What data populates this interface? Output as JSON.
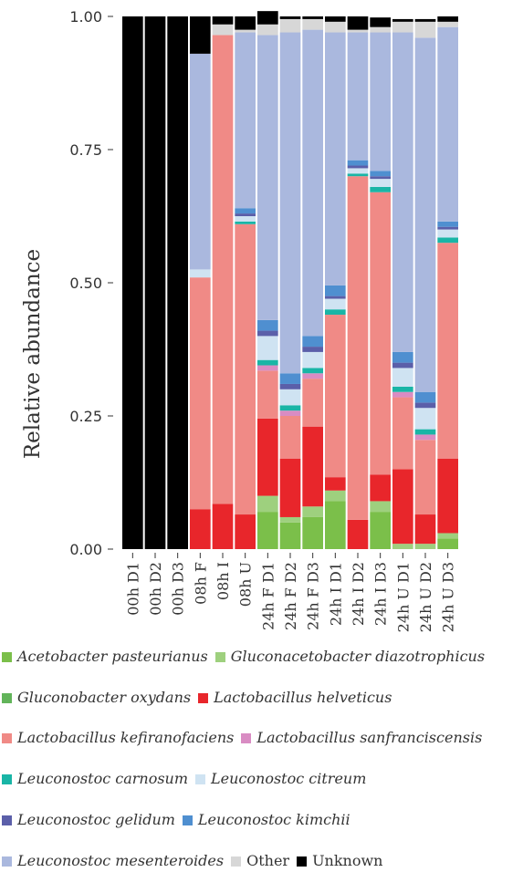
{
  "chart_data": {
    "type": "bar",
    "stacked": true,
    "orientation": "vertical",
    "ylabel": "Relative abundance",
    "xlabel": "",
    "ylim": [
      0,
      1
    ],
    "yticks": [
      "0.00",
      "0.25",
      "0.50",
      "0.75",
      "1.00"
    ],
    "grid": false,
    "legend_position": "bottom",
    "categories": [
      "00h D1",
      "00h D2",
      "00h D3",
      "08h F",
      "08h I",
      "08h U",
      "24h F D1",
      "24h F D2",
      "24h F D3",
      "24h I D1",
      "24h I D2",
      "24h I D3",
      "24h U D1",
      "24h U D2",
      "24h U D3"
    ],
    "series": [
      {
        "name": "Acetobacter pasteurianus",
        "italic": true,
        "color": "#7bbf4a",
        "values": [
          0,
          0,
          0,
          0,
          0,
          0,
          0.07,
          0.05,
          0.06,
          0.09,
          0,
          0.07,
          0,
          0,
          0.02
        ]
      },
      {
        "name": "Gluconacetobacter diazotrophicus",
        "italic": true,
        "color": "#9ed07e",
        "values": [
          0,
          0,
          0,
          0,
          0,
          0,
          0.03,
          0.01,
          0.02,
          0.02,
          0,
          0.02,
          0.01,
          0.01,
          0.01
        ]
      },
      {
        "name": "Gluconobacter oxydans",
        "italic": true,
        "color": "#62b45a",
        "values": [
          0,
          0,
          0,
          0,
          0,
          0,
          0,
          0,
          0,
          0,
          0,
          0,
          0,
          0,
          0
        ]
      },
      {
        "name": "Lactobacillus helveticus",
        "italic": true,
        "color": "#e8262b",
        "values": [
          0,
          0,
          0,
          0.075,
          0.085,
          0.065,
          0.145,
          0.11,
          0.15,
          0.025,
          0.055,
          0.05,
          0.14,
          0.055,
          0.14
        ]
      },
      {
        "name": "Lactobacillus kefiranofaciens",
        "italic": true,
        "color": "#f08a86",
        "values": [
          0,
          0,
          0,
          0.435,
          0.88,
          0.545,
          0.09,
          0.08,
          0.09,
          0.305,
          0.645,
          0.53,
          0.135,
          0.14,
          0.405
        ]
      },
      {
        "name": "Lactobacillus sanfranciscensis",
        "italic": true,
        "color": "#d98cc3",
        "values": [
          0,
          0,
          0,
          0,
          0,
          0,
          0.01,
          0.01,
          0.01,
          0,
          0,
          0,
          0.01,
          0.01,
          0
        ]
      },
      {
        "name": "Leuconostoc carnosum",
        "italic": true,
        "color": "#19b5a6",
        "values": [
          0,
          0,
          0,
          0,
          0,
          0.005,
          0.01,
          0.01,
          0.01,
          0.01,
          0.005,
          0.01,
          0.01,
          0.01,
          0.01
        ]
      },
      {
        "name": "Leuconostoc citreum",
        "italic": true,
        "color": "#cfe3f2",
        "values": [
          0,
          0,
          0,
          0.015,
          0,
          0.01,
          0.045,
          0.03,
          0.03,
          0.02,
          0.01,
          0.015,
          0.035,
          0.04,
          0.015
        ]
      },
      {
        "name": "Leuconostoc gelidum",
        "italic": true,
        "color": "#5b5fa9",
        "values": [
          0,
          0,
          0,
          0,
          0,
          0.005,
          0.01,
          0.01,
          0.01,
          0.005,
          0.005,
          0.005,
          0.01,
          0.01,
          0.005
        ]
      },
      {
        "name": "Leuconostoc kimchii",
        "italic": true,
        "color": "#4f8fd0",
        "values": [
          0,
          0,
          0,
          0,
          0,
          0.01,
          0.02,
          0.02,
          0.02,
          0.02,
          0.01,
          0.01,
          0.02,
          0.02,
          0.01
        ]
      },
      {
        "name": "Leuconostoc mesenteroides",
        "italic": true,
        "color": "#aab8de",
        "values": [
          0,
          0,
          0,
          0.405,
          0,
          0.33,
          0.535,
          0.64,
          0.575,
          0.475,
          0.24,
          0.26,
          0.6,
          0.665,
          0.365
        ]
      },
      {
        "name": "Other",
        "italic": false,
        "color": "#d7d7d7",
        "values": [
          0,
          0,
          0,
          0,
          0.02,
          0.005,
          0.02,
          0.025,
          0.02,
          0.02,
          0.005,
          0.01,
          0.02,
          0.03,
          0.01
        ]
      },
      {
        "name": "Unknown",
        "italic": false,
        "color": "#000000",
        "values": [
          1,
          1,
          1,
          0.07,
          0.015,
          0.025,
          0.025,
          0.005,
          0.005,
          0.01,
          0.025,
          0.018,
          0.005,
          0.005,
          0.01
        ]
      }
    ]
  }
}
